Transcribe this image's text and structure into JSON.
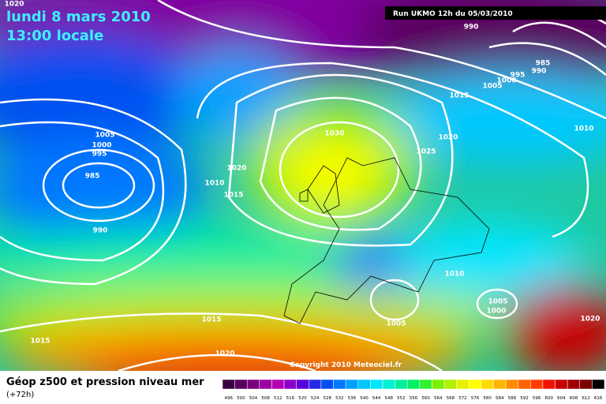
{
  "header": {
    "date": "lundi 8 mars 2010",
    "time": "13:00 locale",
    "run": "Run UKMO 12h du 05/03/2010"
  },
  "isobars": [
    "1020",
    "990",
    "985",
    "990",
    "995",
    "1000",
    "1005",
    "1015",
    "1010",
    "1005",
    "1000",
    "995",
    "985",
    "990",
    "1020",
    "1010",
    "1015",
    "1030",
    "1025",
    "1020",
    "1010",
    "1005",
    "1000",
    "1005",
    "1015",
    "1015",
    "1020",
    "1020"
  ],
  "copyright": "Copyright 2010 Meteociel.fr",
  "footer": {
    "title": "Géop z500 et pression niveau mer",
    "lead": "(+72h)"
  },
  "scale": {
    "labels": [
      496,
      500,
      504,
      508,
      512,
      516,
      520,
      524,
      528,
      532,
      536,
      540,
      544,
      548,
      552,
      556,
      560,
      564,
      568,
      572,
      576,
      580,
      584,
      588,
      592,
      596,
      600,
      604,
      608,
      612,
      616
    ],
    "colors": [
      "#3a0040",
      "#5a005f",
      "#7a0080",
      "#9a00a0",
      "#b400b4",
      "#8c00c8",
      "#5a00dc",
      "#2828e6",
      "#0050f0",
      "#0078ff",
      "#00a0ff",
      "#00c8ff",
      "#00e6ff",
      "#00f0d2",
      "#00f0a0",
      "#00f064",
      "#32f032",
      "#78f000",
      "#b4f000",
      "#e6f000",
      "#ffff00",
      "#ffdc00",
      "#ffb400",
      "#ff8c00",
      "#ff6400",
      "#ff3c00",
      "#f01400",
      "#c80000",
      "#a00000",
      "#780000",
      "#000000"
    ]
  }
}
